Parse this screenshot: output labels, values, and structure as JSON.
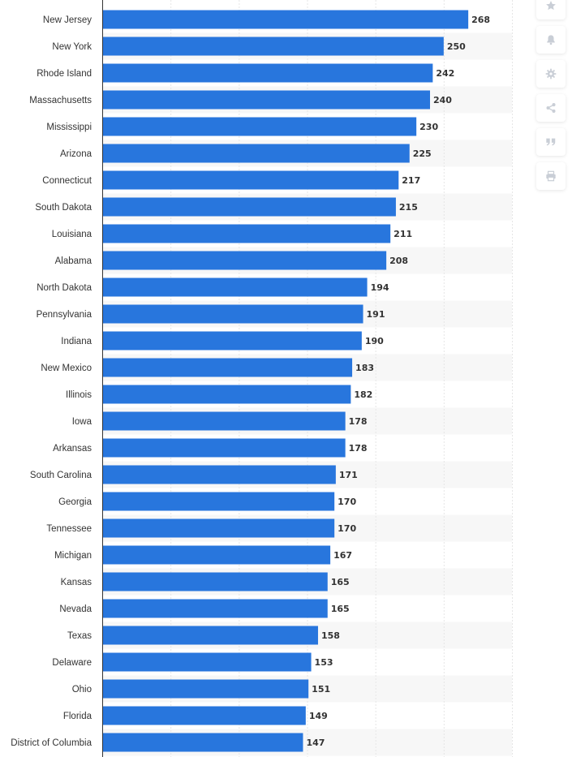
{
  "chart_data": {
    "type": "bar",
    "orientation": "horizontal",
    "categories": [
      "New Jersey",
      "New York",
      "Rhode Island",
      "Massachusetts",
      "Mississippi",
      "Arizona",
      "Connecticut",
      "South Dakota",
      "Louisiana",
      "Alabama",
      "North Dakota",
      "Pennsylvania",
      "Indiana",
      "New Mexico",
      "Illinois",
      "Iowa",
      "Arkansas",
      "South Carolina",
      "Georgia",
      "Tennessee",
      "Michigan",
      "Kansas",
      "Nevada",
      "Texas",
      "Delaware",
      "Ohio",
      "Florida",
      "District of Columbia"
    ],
    "values": [
      268,
      250,
      242,
      240,
      230,
      225,
      217,
      215,
      211,
      208,
      194,
      191,
      190,
      183,
      182,
      178,
      178,
      171,
      170,
      170,
      167,
      165,
      165,
      158,
      153,
      151,
      149,
      147
    ],
    "xlim": [
      0,
      300
    ],
    "grid": "vertical gridlines every 50, alternating row shading",
    "data_labels": true,
    "bar_color": "#2876dd"
  },
  "toolbar": {
    "icons": [
      "star-icon",
      "bell-icon",
      "gear-icon",
      "share-icon",
      "quote-icon",
      "print-icon"
    ],
    "icon_color": "#c9ced6"
  }
}
